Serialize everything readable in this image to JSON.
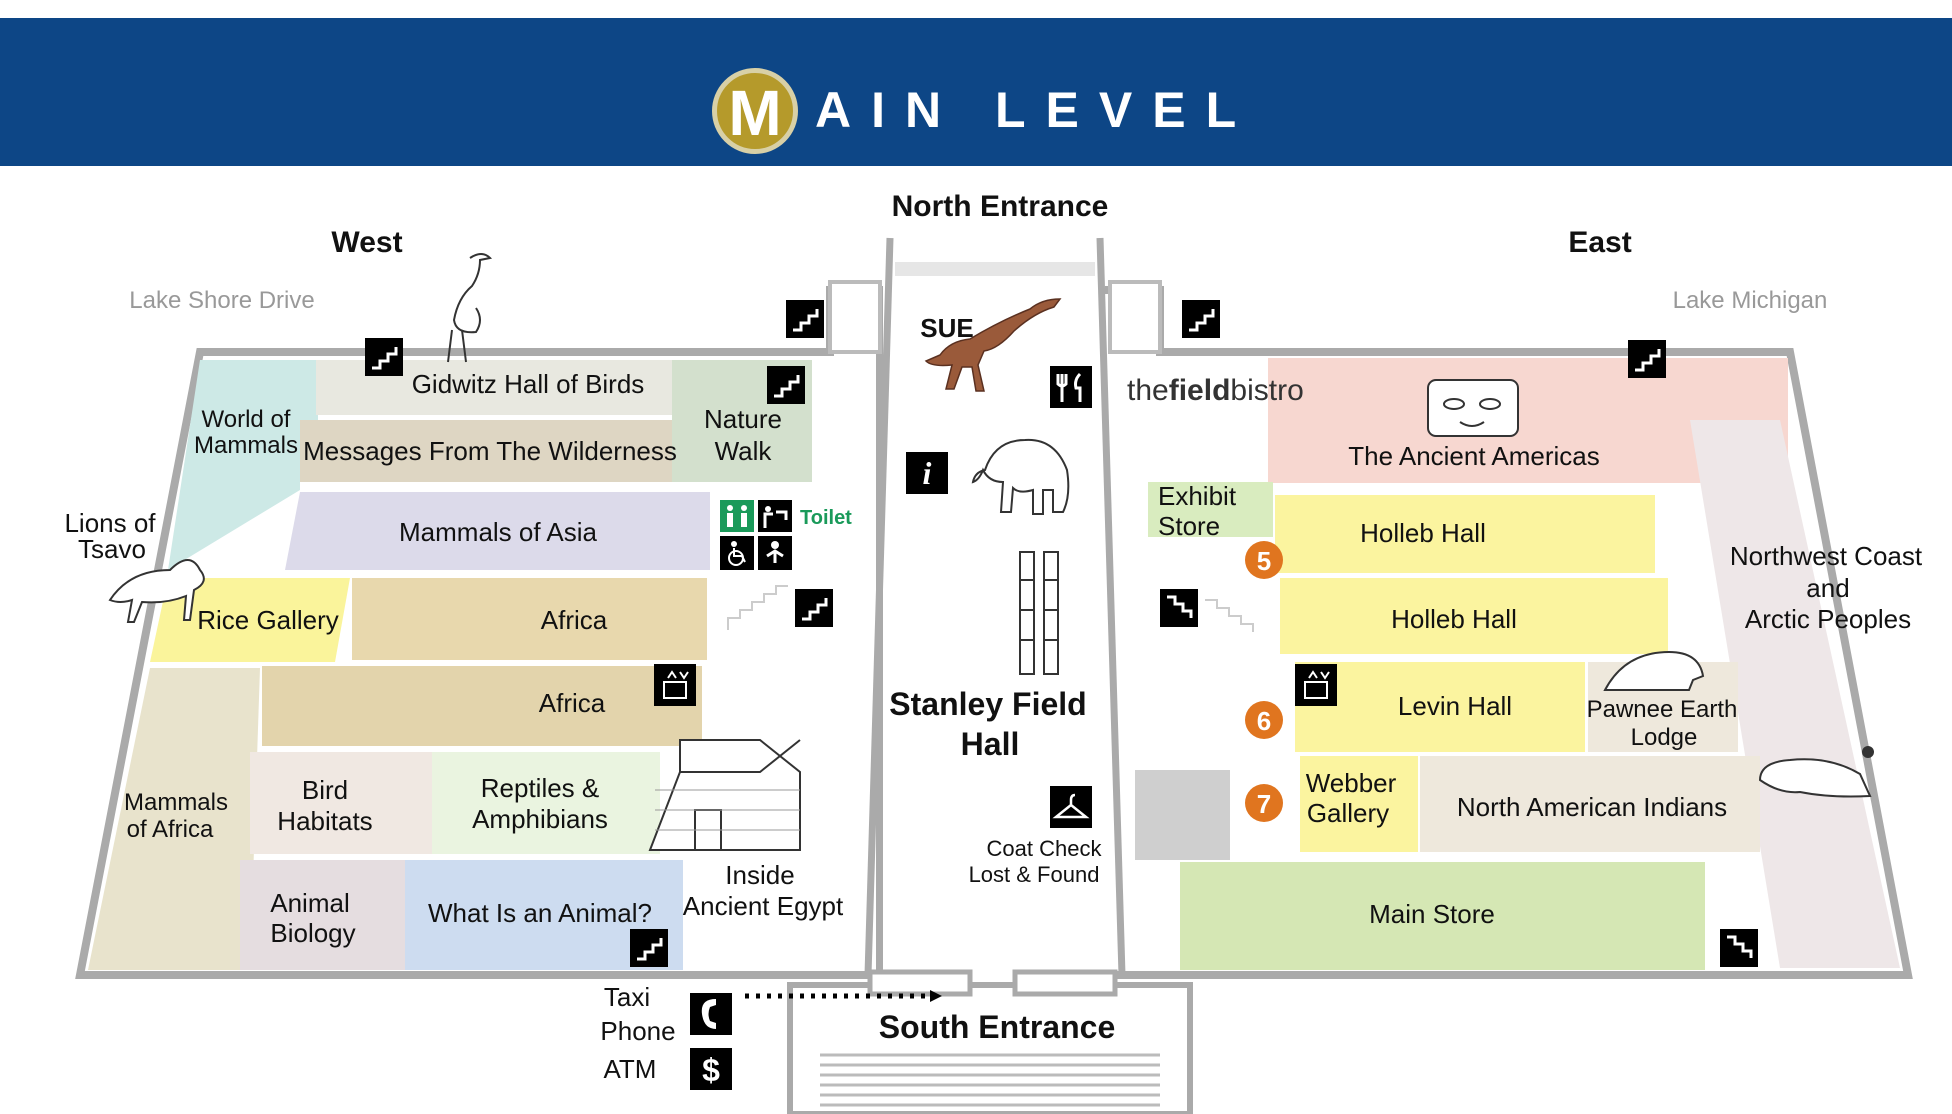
{
  "header": {
    "badge_letter": "M",
    "title": "AIN LEVEL"
  },
  "compass": {
    "west": "West",
    "east": "East"
  },
  "streets": {
    "west": "Lake Shore Drive",
    "east": "Lake Michigan"
  },
  "entrances": {
    "north": "North Entrance",
    "south": "South Entrance"
  },
  "central_hall": {
    "line1": "Stanley Field",
    "line2": "Hall"
  },
  "exhibits": {
    "sue": "SUE",
    "birds": "Gidwitz Hall of Birds",
    "world_mammals": [
      "World of",
      "Mammals"
    ],
    "messages": "Messages From The Wilderness",
    "nature_walk": [
      "Nature",
      "Walk"
    ],
    "lions": [
      "Lions of",
      "Tsavo"
    ],
    "mammals_asia": "Mammals of Asia",
    "rice_gallery": "Rice Gallery",
    "africa_1": "Africa",
    "africa_2": "Africa",
    "mammals_africa": [
      "Mammals",
      "of Africa"
    ],
    "bird_habitats": [
      "Bird",
      "Habitats"
    ],
    "reptiles": [
      "Reptiles &",
      "Amphibians"
    ],
    "animal_biology": [
      "Animal",
      "Biology"
    ],
    "what_animal": "What Is an Animal?",
    "egypt": [
      "Inside",
      "Ancient Egypt"
    ],
    "ancient_americas": "The Ancient Americas",
    "exhibit_store": [
      "Exhibit",
      "Store"
    ],
    "holleb_1": "Holleb Hall",
    "holleb_2": "Holleb Hall",
    "levin": "Levin Hall",
    "pawnee": [
      "Pawnee Earth",
      "Lodge"
    ],
    "webber": [
      "Webber",
      "Gallery"
    ],
    "north_american": "North American Indians",
    "northwest": [
      "Northwest Coast",
      "and",
      "Arctic Peoples"
    ],
    "main_store": "Main Store"
  },
  "bistro": {
    "pre": "the",
    "bold": "field",
    "post": "bistro"
  },
  "services": {
    "toilet": "Toilet",
    "coat": [
      "Coat Check",
      "Lost & Found"
    ],
    "taxi": [
      "Taxi",
      "Phone"
    ],
    "atm": "ATM",
    "info": "i",
    "dollar": "$"
  },
  "markers": [
    "5",
    "6",
    "7"
  ],
  "colors": {
    "header": "#0d4686",
    "badge": "#b59a2b",
    "marker": "#e0751f",
    "toilet_green": "#1a9a5a"
  }
}
